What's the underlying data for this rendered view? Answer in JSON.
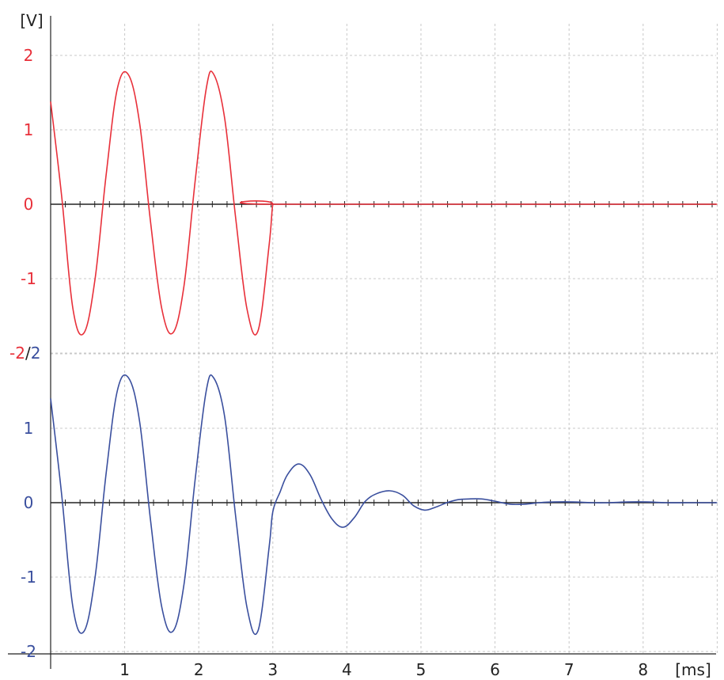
{
  "chart_data": {
    "type": "line",
    "x_unit": "[ms]",
    "y_unit": "[V]",
    "xlim": [
      0,
      9
    ],
    "x_ticks": [
      "1",
      "2",
      "3",
      "4",
      "5",
      "6",
      "7",
      "8"
    ],
    "grid": true,
    "colors": {
      "red": "#e8303a",
      "blue": "#3a4f9e",
      "axis": "#222222",
      "grid": "#c8c8c8"
    },
    "panels": [
      {
        "color": "red",
        "ylim": [
          -2,
          2
        ],
        "y_ticks": [
          "2",
          "1",
          "0",
          "-1"
        ],
        "series": {
          "description": "sine burst, amplitude 1.75 V, period 1.15 ms, ends at 3 ms",
          "x": [
            0,
            0.15,
            0.3,
            0.45,
            0.6,
            0.75,
            0.9,
            1.05,
            1.2,
            1.35,
            1.5,
            1.65,
            1.8,
            1.95,
            2.1,
            2.2,
            2.35,
            2.5,
            2.65,
            2.8,
            2.95,
            3.0,
            3.05,
            9.0
          ],
          "y": [
            1.38,
            0.1,
            -1.4,
            -1.73,
            -1.0,
            0.4,
            1.55,
            1.74,
            1.1,
            -0.25,
            -1.4,
            -1.73,
            -1.1,
            0.3,
            1.55,
            1.75,
            1.15,
            -0.2,
            -1.4,
            -1.7,
            -0.55,
            0.0,
            0.0,
            0.0
          ]
        }
      },
      {
        "color": "blue",
        "ylim": [
          -2,
          2
        ],
        "y_ticks": [
          "1",
          "0",
          "-1",
          "-2"
        ],
        "series": {
          "description": "same burst followed by damped ringing after 3 ms",
          "x": [
            0,
            0.15,
            0.3,
            0.45,
            0.6,
            0.75,
            0.9,
            1.05,
            1.2,
            1.35,
            1.5,
            1.65,
            1.8,
            1.95,
            2.1,
            2.2,
            2.35,
            2.5,
            2.65,
            2.8,
            2.95,
            3.0,
            3.1,
            3.2,
            3.35,
            3.5,
            3.65,
            3.8,
            3.95,
            4.1,
            4.25,
            4.4,
            4.58,
            4.75,
            4.9,
            5.05,
            5.2,
            5.35,
            5.5,
            5.65,
            5.82,
            6.0,
            6.2,
            6.4,
            6.6,
            6.8,
            7.05,
            7.3,
            7.55,
            7.8,
            8.05,
            8.3,
            8.6,
            9.0
          ],
          "y": [
            1.4,
            0.1,
            -1.4,
            -1.73,
            -1.0,
            0.4,
            1.5,
            1.68,
            1.1,
            -0.25,
            -1.4,
            -1.73,
            -1.1,
            0.3,
            1.5,
            1.68,
            1.15,
            -0.2,
            -1.4,
            -1.72,
            -0.6,
            -0.12,
            0.15,
            0.38,
            0.52,
            0.38,
            0.05,
            -0.22,
            -0.33,
            -0.2,
            0.02,
            0.12,
            0.16,
            0.1,
            -0.04,
            -0.1,
            -0.06,
            0.0,
            0.04,
            0.05,
            0.05,
            0.02,
            -0.02,
            -0.02,
            0.0,
            0.01,
            0.01,
            0.0,
            0.0,
            0.01,
            0.01,
            0.0,
            0.0,
            0.0
          ]
        }
      }
    ],
    "shared_label": {
      "left": "-2",
      "separator": "/",
      "right": "2"
    }
  }
}
